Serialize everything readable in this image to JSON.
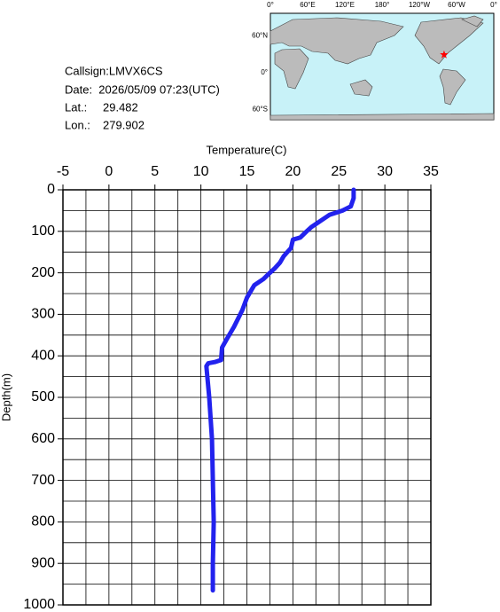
{
  "info": {
    "callsign": "Callsign:LMVX6CS",
    "date": "Date:  2026/05/09 07:23(UTC)",
    "lat_label": "Lat.:",
    "lat": 29.482,
    "lon_label": "Lon.:",
    "lon": 279.902
  },
  "map": {
    "lon_labels": [
      "0°",
      "60°E",
      "120°E",
      "180°",
      "120°W",
      "60°W",
      "0°"
    ],
    "lat_labels": [
      "60°N",
      "0°",
      "60°S"
    ]
  },
  "chart_data": {
    "type": "line",
    "x_label": "Temperature(C)",
    "y_label": "Depth(m)",
    "color": "#2222ee",
    "x": [
      26.6,
      26.6,
      26.3,
      25.4,
      24,
      23,
      22,
      21.5,
      20.8,
      20,
      19.8,
      19,
      18.6,
      18,
      17.5,
      16.8,
      15.8,
      15,
      14.5,
      13.6,
      12.8,
      12.3,
      12.2,
      11.5,
      10.8,
      10.6,
      10.9,
      11.2,
      11.3,
      11.4,
      11.3,
      11.3
    ],
    "values": [
      0,
      20,
      40,
      50,
      60,
      75,
      90,
      100,
      115,
      120,
      140,
      160,
      175,
      190,
      200,
      215,
      230,
      260,
      290,
      330,
      360,
      380,
      410,
      415,
      418,
      425,
      500,
      600,
      700,
      800,
      900,
      965
    ],
    "xlim": [
      -5,
      35
    ],
    "xticks": [
      -5,
      0,
      5,
      10,
      15,
      20,
      25,
      30,
      35
    ],
    "minor_xticks": [
      -2.5,
      2.5,
      7.5,
      12.5,
      17.5,
      22.5,
      27.5,
      32.5
    ],
    "ylim": [
      0,
      1000
    ],
    "y_inverted": true,
    "yticks": [
      0,
      100,
      200,
      300,
      400,
      500,
      600,
      700,
      800,
      900,
      1000
    ],
    "minor_yticks": [
      50,
      150,
      250,
      350,
      450,
      550,
      650,
      750,
      850,
      950
    ],
    "grid": true
  }
}
